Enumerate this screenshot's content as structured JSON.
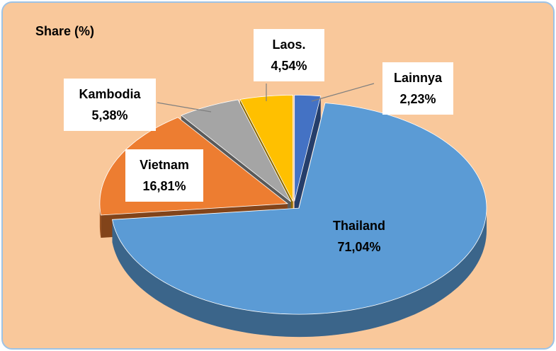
{
  "chart_data": {
    "type": "pie3d",
    "title": "Share (%)",
    "categories": [
      "Lainnya",
      "Thailand",
      "Vietnam",
      "Kambodia",
      "Laos."
    ],
    "values": [
      2.23,
      71.04,
      16.81,
      5.38,
      4.54
    ],
    "value_labels": [
      "2,23%",
      "71,04%",
      "16,81%",
      "5,38%",
      "4,54%"
    ],
    "colors": [
      "#4472c4",
      "#5b9bd5",
      "#ed7d31",
      "#a5a5a5",
      "#ffc000"
    ],
    "background": "#f9c89b"
  }
}
